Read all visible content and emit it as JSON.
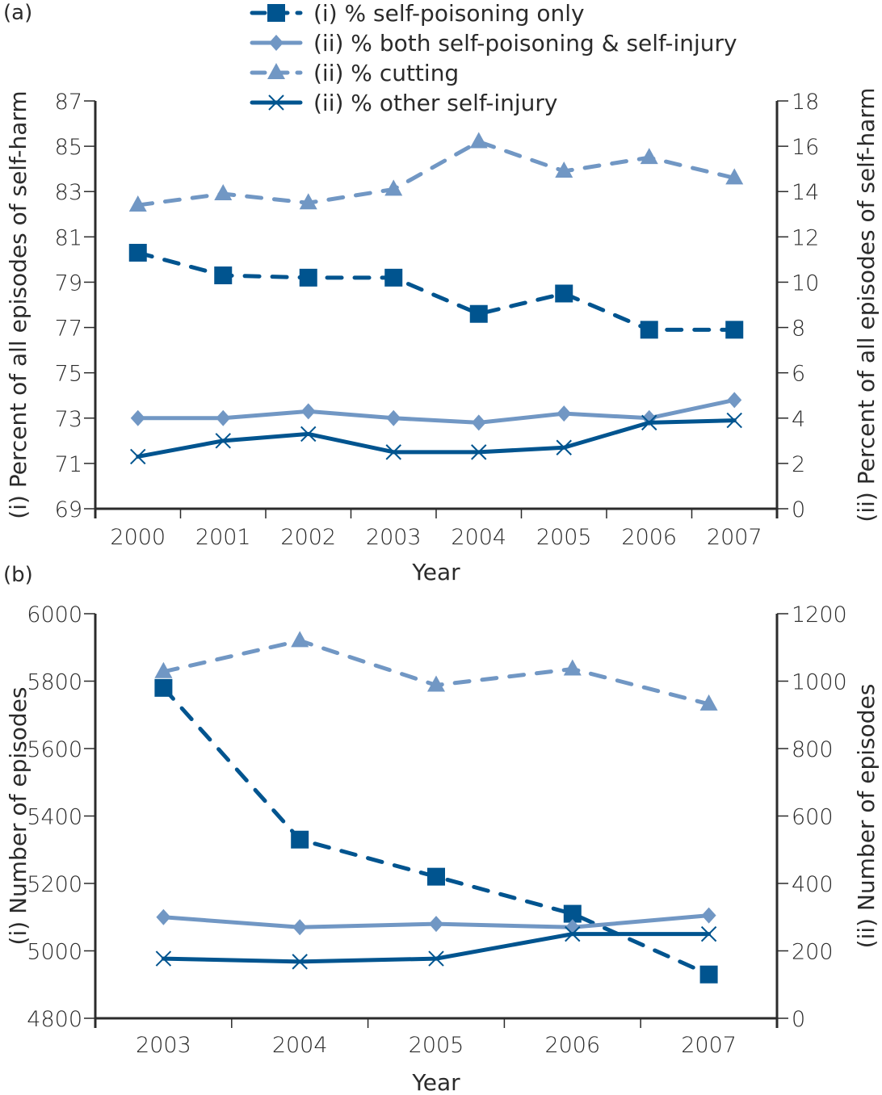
{
  "colors": {
    "dark_blue": "#00548f",
    "light_blue": "#7197c4",
    "axis": "#2b2b2b"
  },
  "legend": [
    {
      "label": "(i) % self-poisoning only",
      "marker": "square",
      "color": "#00548f",
      "dashed": true
    },
    {
      "label": "(ii) % both self-poisoning & self-injury",
      "marker": "diamond",
      "color": "#7197c4",
      "dashed": false
    },
    {
      "label": "(ii) % cutting",
      "marker": "triangle",
      "color": "#7197c4",
      "dashed": true
    },
    {
      "label": "(ii) % other self-injury",
      "marker": "cross",
      "color": "#00548f",
      "dashed": false
    }
  ],
  "chart_data": [
    {
      "panel": "(a)",
      "type": "line",
      "xlabel": "Year",
      "ylabel_left": "(i) Percent of all episodes of self-harm",
      "ylabel_right": "(ii) Percent of all episodes of self-harm",
      "x": [
        "2000",
        "2001",
        "2002",
        "2003",
        "2004",
        "2005",
        "2006",
        "2007"
      ],
      "ylim_left": [
        69,
        87
      ],
      "yticks_left": [
        "69",
        "71",
        "73",
        "75",
        "77",
        "79",
        "81",
        "83",
        "85",
        "87"
      ],
      "ylim_right": [
        0,
        18
      ],
      "yticks_right": [
        "0",
        "2",
        "4",
        "6",
        "8",
        "10",
        "12",
        "14",
        "16",
        "18"
      ],
      "series": [
        {
          "name": "(i) % self-poisoning only",
          "axis": "left",
          "marker": "square",
          "color": "#00548f",
          "dashed": true,
          "values": [
            80.3,
            79.3,
            79.2,
            79.2,
            77.6,
            78.5,
            76.9,
            76.9
          ]
        },
        {
          "name": "(ii) % both self-poisoning & self-injury",
          "axis": "right",
          "marker": "diamond",
          "color": "#7197c4",
          "dashed": false,
          "values": [
            4.0,
            4.0,
            4.3,
            4.0,
            3.8,
            4.2,
            4.0,
            4.8
          ]
        },
        {
          "name": "(ii) % cutting",
          "axis": "right",
          "marker": "triangle",
          "color": "#7197c4",
          "dashed": true,
          "values": [
            13.4,
            13.9,
            13.5,
            14.1,
            16.2,
            14.9,
            15.5,
            14.6
          ]
        },
        {
          "name": "(ii) % other self-injury",
          "axis": "right",
          "marker": "cross",
          "color": "#00548f",
          "dashed": false,
          "values": [
            2.3,
            3.0,
            3.3,
            2.5,
            2.5,
            2.7,
            3.8,
            3.9
          ]
        }
      ]
    },
    {
      "panel": "(b)",
      "type": "line",
      "xlabel": "Year",
      "ylabel_left": "(i) Number of episodes",
      "ylabel_right": "(ii) Number of episodes",
      "x": [
        "2003",
        "2004",
        "2005",
        "2006",
        "2007"
      ],
      "ylim_left": [
        4800,
        6000
      ],
      "yticks_left": [
        "4800",
        "5000",
        "5200",
        "5400",
        "5600",
        "5800",
        "6000"
      ],
      "ylim_right": [
        0,
        1200
      ],
      "yticks_right": [
        "0",
        "200",
        "400",
        "600",
        "800",
        "1000",
        "1200"
      ],
      "series": [
        {
          "name": "(i) % self-poisoning only",
          "axis": "left",
          "marker": "square",
          "color": "#00548f",
          "dashed": true,
          "values": [
            5780,
            5330,
            5220,
            5110,
            4930
          ]
        },
        {
          "name": "(ii) % both self-poisoning & self-injury",
          "axis": "right",
          "marker": "diamond",
          "color": "#7197c4",
          "dashed": false,
          "values": [
            300,
            270,
            280,
            270,
            305
          ]
        },
        {
          "name": "(ii) % cutting",
          "axis": "right",
          "marker": "triangle",
          "color": "#7197c4",
          "dashed": true,
          "values": [
            1028,
            1120,
            988,
            1036,
            932
          ]
        },
        {
          "name": "(ii) % other self-injury",
          "axis": "right",
          "marker": "cross",
          "color": "#00548f",
          "dashed": false,
          "values": [
            177,
            168,
            177,
            250,
            250
          ]
        }
      ]
    }
  ]
}
